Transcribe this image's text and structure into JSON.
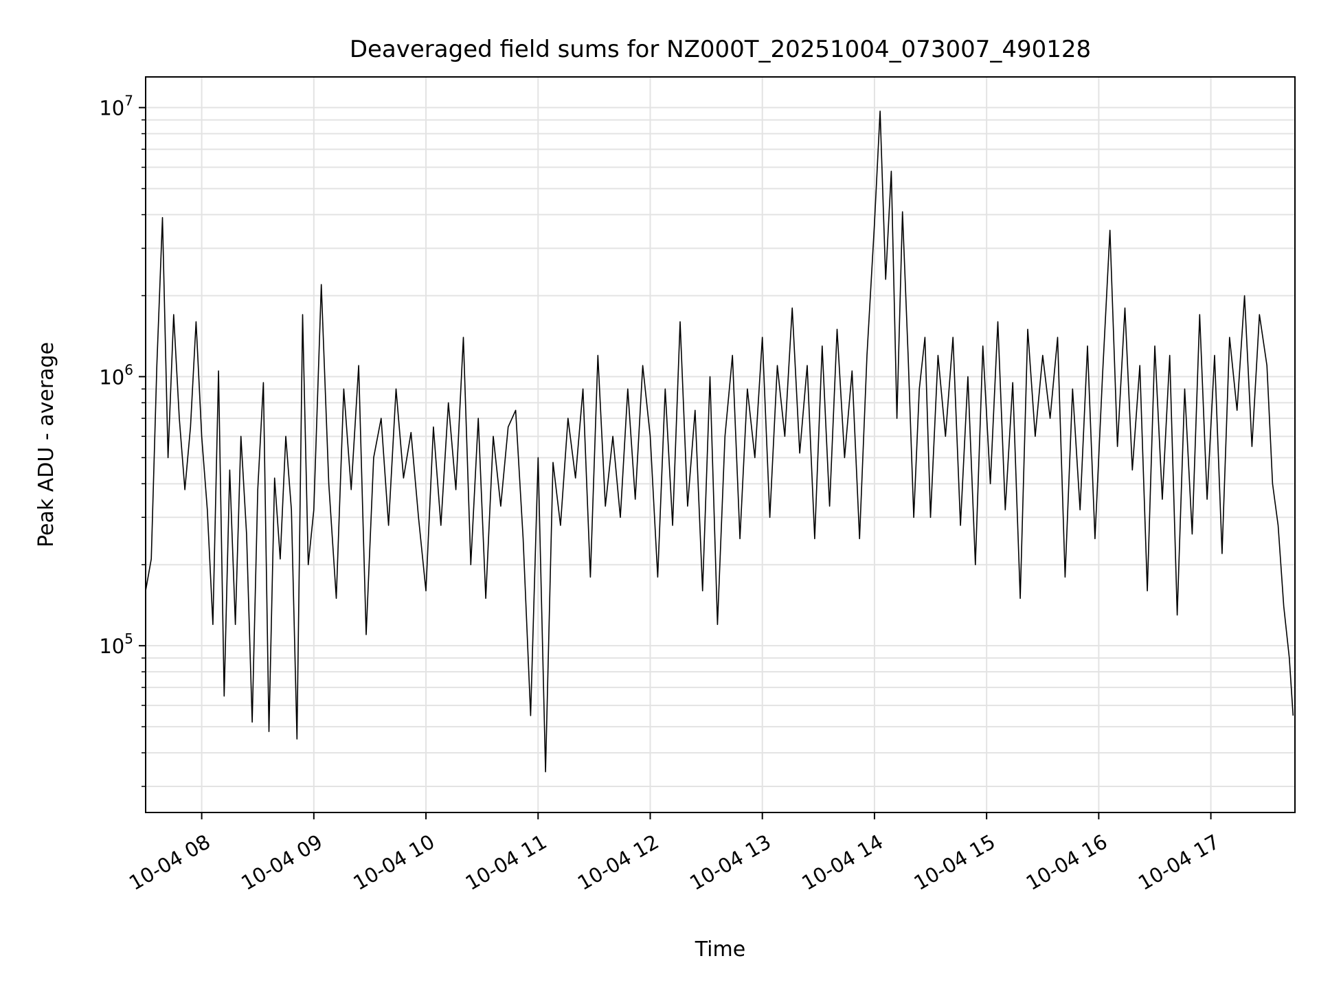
{
  "chart_data": {
    "type": "line",
    "title": "Deaveraged field sums for NZ000T_20251004_073007_490128",
    "xlabel": "Time",
    "ylabel": "Peak ADU - average",
    "y_scale": "log",
    "ylim": [
      24000,
      13000000
    ],
    "xlim": [
      "2025-10-04 07:30",
      "2025-10-04 17:45"
    ],
    "grid": true,
    "legend": "none",
    "x_ticks": [
      {
        "time": "2025-10-04 08:00",
        "label": "10-04 08"
      },
      {
        "time": "2025-10-04 09:00",
        "label": "10-04 09"
      },
      {
        "time": "2025-10-04 10:00",
        "label": "10-04 10"
      },
      {
        "time": "2025-10-04 11:00",
        "label": "10-04 11"
      },
      {
        "time": "2025-10-04 12:00",
        "label": "10-04 12"
      },
      {
        "time": "2025-10-04 13:00",
        "label": "10-04 13"
      },
      {
        "time": "2025-10-04 14:00",
        "label": "10-04 14"
      },
      {
        "time": "2025-10-04 15:00",
        "label": "10-04 15"
      },
      {
        "time": "2025-10-04 16:00",
        "label": "10-04 16"
      },
      {
        "time": "2025-10-04 17:00",
        "label": "10-04 17"
      }
    ],
    "y_ticks": [
      {
        "value": 100000,
        "base": "10",
        "exp": "5"
      },
      {
        "value": 1000000,
        "base": "10",
        "exp": "6"
      },
      {
        "value": 10000000,
        "base": "10",
        "exp": "7"
      }
    ],
    "series": [
      {
        "color": "#000000",
        "x": [
          "2025-10-04 07:30",
          "2025-10-04 07:33",
          "2025-10-04 07:36",
          "2025-10-04 07:39",
          "2025-10-04 07:42",
          "2025-10-04 07:45",
          "2025-10-04 07:48",
          "2025-10-04 07:51",
          "2025-10-04 07:54",
          "2025-10-04 07:57",
          "2025-10-04 08:00",
          "2025-10-04 08:03",
          "2025-10-04 08:06",
          "2025-10-04 08:09",
          "2025-10-04 08:12",
          "2025-10-04 08:15",
          "2025-10-04 08:18",
          "2025-10-04 08:21",
          "2025-10-04 08:24",
          "2025-10-04 08:27",
          "2025-10-04 08:30",
          "2025-10-04 08:33",
          "2025-10-04 08:36",
          "2025-10-04 08:39",
          "2025-10-04 08:42",
          "2025-10-04 08:45",
          "2025-10-04 08:48",
          "2025-10-04 08:51",
          "2025-10-04 08:54",
          "2025-10-04 08:57",
          "2025-10-04 09:00",
          "2025-10-04 09:04",
          "2025-10-04 09:08",
          "2025-10-04 09:12",
          "2025-10-04 09:16",
          "2025-10-04 09:20",
          "2025-10-04 09:24",
          "2025-10-04 09:28",
          "2025-10-04 09:32",
          "2025-10-04 09:36",
          "2025-10-04 09:40",
          "2025-10-04 09:44",
          "2025-10-04 09:48",
          "2025-10-04 09:52",
          "2025-10-04 09:56",
          "2025-10-04 10:00",
          "2025-10-04 10:04",
          "2025-10-04 10:08",
          "2025-10-04 10:12",
          "2025-10-04 10:16",
          "2025-10-04 10:20",
          "2025-10-04 10:24",
          "2025-10-04 10:28",
          "2025-10-04 10:32",
          "2025-10-04 10:36",
          "2025-10-04 10:40",
          "2025-10-04 10:44",
          "2025-10-04 10:48",
          "2025-10-04 10:52",
          "2025-10-04 10:56",
          "2025-10-04 11:00",
          "2025-10-04 11:04",
          "2025-10-04 11:08",
          "2025-10-04 11:12",
          "2025-10-04 11:16",
          "2025-10-04 11:20",
          "2025-10-04 11:24",
          "2025-10-04 11:28",
          "2025-10-04 11:32",
          "2025-10-04 11:36",
          "2025-10-04 11:40",
          "2025-10-04 11:44",
          "2025-10-04 11:48",
          "2025-10-04 11:52",
          "2025-10-04 11:56",
          "2025-10-04 12:00",
          "2025-10-04 12:04",
          "2025-10-04 12:08",
          "2025-10-04 12:12",
          "2025-10-04 12:16",
          "2025-10-04 12:20",
          "2025-10-04 12:24",
          "2025-10-04 12:28",
          "2025-10-04 12:32",
          "2025-10-04 12:36",
          "2025-10-04 12:40",
          "2025-10-04 12:44",
          "2025-10-04 12:48",
          "2025-10-04 12:52",
          "2025-10-04 12:56",
          "2025-10-04 13:00",
          "2025-10-04 13:04",
          "2025-10-04 13:08",
          "2025-10-04 13:12",
          "2025-10-04 13:16",
          "2025-10-04 13:20",
          "2025-10-04 13:24",
          "2025-10-04 13:28",
          "2025-10-04 13:32",
          "2025-10-04 13:36",
          "2025-10-04 13:40",
          "2025-10-04 13:44",
          "2025-10-04 13:48",
          "2025-10-04 13:52",
          "2025-10-04 13:56",
          "2025-10-04 14:00",
          "2025-10-04 14:03",
          "2025-10-04 14:06",
          "2025-10-04 14:09",
          "2025-10-04 14:12",
          "2025-10-04 14:15",
          "2025-10-04 14:18",
          "2025-10-04 14:21",
          "2025-10-04 14:24",
          "2025-10-04 14:27",
          "2025-10-04 14:30",
          "2025-10-04 14:34",
          "2025-10-04 14:38",
          "2025-10-04 14:42",
          "2025-10-04 14:46",
          "2025-10-04 14:50",
          "2025-10-04 14:54",
          "2025-10-04 14:58",
          "2025-10-04 15:02",
          "2025-10-04 15:06",
          "2025-10-04 15:10",
          "2025-10-04 15:14",
          "2025-10-04 15:18",
          "2025-10-04 15:22",
          "2025-10-04 15:26",
          "2025-10-04 15:30",
          "2025-10-04 15:34",
          "2025-10-04 15:38",
          "2025-10-04 15:42",
          "2025-10-04 15:46",
          "2025-10-04 15:50",
          "2025-10-04 15:54",
          "2025-10-04 15:58",
          "2025-10-04 16:02",
          "2025-10-04 16:06",
          "2025-10-04 16:10",
          "2025-10-04 16:14",
          "2025-10-04 16:18",
          "2025-10-04 16:22",
          "2025-10-04 16:26",
          "2025-10-04 16:30",
          "2025-10-04 16:34",
          "2025-10-04 16:38",
          "2025-10-04 16:42",
          "2025-10-04 16:46",
          "2025-10-04 16:50",
          "2025-10-04 16:54",
          "2025-10-04 16:58",
          "2025-10-04 17:02",
          "2025-10-04 17:06",
          "2025-10-04 17:10",
          "2025-10-04 17:14",
          "2025-10-04 17:18",
          "2025-10-04 17:22",
          "2025-10-04 17:26",
          "2025-10-04 17:30",
          "2025-10-04 17:33",
          "2025-10-04 17:36",
          "2025-10-04 17:39",
          "2025-10-04 17:42",
          "2025-10-04 17:44"
        ],
        "y": [
          160000,
          210000,
          1100000,
          3900000,
          500000,
          1700000,
          700000,
          380000,
          650000,
          1600000,
          600000,
          320000,
          120000,
          1050000,
          65000,
          450000,
          120000,
          600000,
          260000,
          52000,
          380000,
          950000,
          48000,
          420000,
          210000,
          600000,
          320000,
          45000,
          1700000,
          200000,
          320000,
          2200000,
          400000,
          150000,
          900000,
          380000,
          1100000,
          110000,
          500000,
          700000,
          280000,
          900000,
          420000,
          620000,
          300000,
          160000,
          650000,
          280000,
          800000,
          380000,
          1400000,
          200000,
          700000,
          150000,
          600000,
          330000,
          650000,
          750000,
          250000,
          55000,
          500000,
          34000,
          480000,
          280000,
          700000,
          420000,
          900000,
          180000,
          1200000,
          330000,
          600000,
          300000,
          900000,
          350000,
          1100000,
          600000,
          180000,
          900000,
          280000,
          1600000,
          330000,
          750000,
          160000,
          1000000,
          120000,
          600000,
          1200000,
          250000,
          900000,
          500000,
          1400000,
          300000,
          1100000,
          600000,
          1800000,
          520000,
          1100000,
          250000,
          1300000,
          330000,
          1500000,
          500000,
          1050000,
          250000,
          1200000,
          3700000,
          9700000,
          2300000,
          5800000,
          700000,
          4100000,
          1200000,
          300000,
          900000,
          1400000,
          300000,
          1200000,
          600000,
          1400000,
          280000,
          1000000,
          200000,
          1300000,
          400000,
          1600000,
          320000,
          950000,
          150000,
          1500000,
          600000,
          1200000,
          700000,
          1400000,
          180000,
          900000,
          320000,
          1300000,
          250000,
          1000000,
          3500000,
          550000,
          1800000,
          450000,
          1100000,
          160000,
          1300000,
          350000,
          1200000,
          130000,
          900000,
          260000,
          1700000,
          350000,
          1200000,
          220000,
          1400000,
          750000,
          2000000,
          550000,
          1700000,
          1100000,
          400000,
          280000,
          140000,
          90000,
          55000
        ]
      }
    ]
  }
}
